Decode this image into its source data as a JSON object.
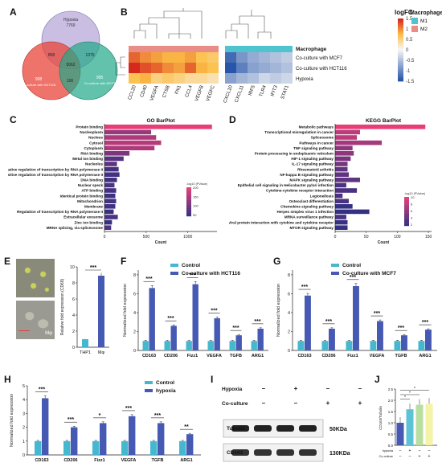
{
  "panel_labels": {
    "A": "A",
    "B": "B",
    "C": "C",
    "D": "D",
    "E": "E",
    "F": "F",
    "G": "G",
    "H": "H",
    "I": "I",
    "J": "J"
  },
  "venn": {
    "sets": [
      {
        "name": "Hypoxia",
        "count": "7769",
        "color": "#b8a8d8"
      },
      {
        "name": "Co-culture with HCT116",
        "count": "908",
        "color": "#e8463a"
      },
      {
        "name": "Co-culture with MCF7",
        "count": "995",
        "color": "#1fa888"
      }
    ],
    "intersections": {
      "hyp_hct": "858",
      "hyp_mcf": "1375",
      "hct_mcf": "100",
      "all": "5062"
    }
  },
  "heatmap": {
    "legend_title": "logFC",
    "legend_ticks": [
      "1.5",
      "1",
      "0.5",
      "0",
      "-0.5",
      "-1",
      "-1.5"
    ],
    "macrophage_label": "Macrophage",
    "macrophage_legend": [
      {
        "name": "M1",
        "color": "#4fc4cf"
      },
      {
        "name": "M2",
        "color": "#e88e86"
      }
    ],
    "rows": [
      "Macrophage",
      "Co-culture with MCF7",
      "Co-culture with HCT116",
      "Hypoxia"
    ],
    "columns": [
      "CCL20",
      "CD40",
      "VEGFA",
      "CTSB",
      "FN1",
      "CCL4",
      "VEGFB",
      "VEGFC",
      "CXCL10",
      "CXCL11",
      "IRF5",
      "TLR4",
      "IFIT3",
      "STAT1"
    ],
    "group": [
      "M2",
      "M2",
      "M2",
      "M2",
      "M2",
      "M2",
      "M2",
      "M2",
      "M1",
      "M1",
      "M1",
      "M1",
      "M1",
      "M1"
    ],
    "values": [
      [
        1.2,
        1.0,
        0.9,
        0.8,
        0.8,
        0.9,
        0.7,
        0.6,
        -1.3,
        -0.9,
        -0.7,
        -0.6,
        -0.5,
        -0.4
      ],
      [
        1.5,
        1.3,
        1.2,
        1.0,
        0.9,
        1.2,
        0.8,
        0.7,
        -1.5,
        -1.1,
        -0.8,
        -0.7,
        -0.6,
        -0.5
      ],
      [
        0.7,
        0.8,
        0.5,
        0.6,
        0.5,
        0.4,
        0.4,
        0.3,
        -0.8,
        -0.6,
        -0.5,
        -0.3,
        -0.4,
        -0.3
      ]
    ]
  },
  "go": {
    "title": "GO BarPlot",
    "xlabel": "Count",
    "xticks": [
      "0",
      "500",
      "1000"
    ],
    "xmax": 1350,
    "legend_title": "-log10 (PValue)",
    "legend_ticks": [
      "200",
      "150",
      "100",
      "50"
    ],
    "terms": [
      {
        "label": "Protein binding",
        "count": 1290,
        "p": 200
      },
      {
        "label": "Nucleoplasm",
        "count": 560,
        "p": 120
      },
      {
        "label": "Nucleus",
        "count": 620,
        "p": 140
      },
      {
        "label": "Cytosol",
        "count": 680,
        "p": 150
      },
      {
        "label": "Cytoplasm",
        "count": 600,
        "p": 140
      },
      {
        "label": "RNA binding",
        "count": 300,
        "p": 90
      },
      {
        "label": "Metal ion binding",
        "count": 230,
        "p": 50
      },
      {
        "label": "Nucleolus",
        "count": 150,
        "p": 60
      },
      {
        "label": "Negative regulation of transcription by RNA polymerase II",
        "count": 170,
        "p": 30
      },
      {
        "label": "Positive regulation of transcription by RNA polymerase II",
        "count": 180,
        "p": 30
      },
      {
        "label": "DNA binding",
        "count": 150,
        "p": 25
      },
      {
        "label": "Nuclear speck",
        "count": 120,
        "p": 40
      },
      {
        "label": "ATP binding",
        "count": 140,
        "p": 30
      },
      {
        "label": "Identical protein binding",
        "count": 130,
        "p": 25
      },
      {
        "label": "Mitochondrion",
        "count": 140,
        "p": 35
      },
      {
        "label": "Membrane",
        "count": 130,
        "p": 30
      },
      {
        "label": "Regulation of transcription by RNA polymerase II",
        "count": 110,
        "p": 20
      },
      {
        "label": "Extracellular exosome",
        "count": 160,
        "p": 40
      },
      {
        "label": "Zinc ion binding",
        "count": 90,
        "p": 15
      },
      {
        "label": "MRNA splicing, via spliceosome",
        "count": 80,
        "p": 45
      }
    ]
  },
  "kegg": {
    "title": "KEGG BarPlot",
    "xlabel": "Count",
    "xticks": [
      "0",
      "50",
      "100",
      "150"
    ],
    "xmax": 155,
    "legend_title": "-log10 (PValue)",
    "legend_ticks": [
      "10",
      "8",
      "6",
      "4",
      "2"
    ],
    "terms": [
      {
        "label": "Metabolic pathways",
        "count": 145,
        "p": 10
      },
      {
        "label": "Transcriptional misregulation in cancer",
        "count": 40,
        "p": 8
      },
      {
        "label": "Spliceosome",
        "count": 35,
        "p": 8
      },
      {
        "label": "Pathways in cancer",
        "count": 75,
        "p": 7
      },
      {
        "label": "TNF signaling pathway",
        "count": 28,
        "p": 6
      },
      {
        "label": "Protein processing in endoplasmic reticulum",
        "count": 30,
        "p": 6
      },
      {
        "label": "HIF-1 signaling pathway",
        "count": 25,
        "p": 5
      },
      {
        "label": "IL-17 signaling pathway",
        "count": 20,
        "p": 5
      },
      {
        "label": "Rheumatoid arthritis",
        "count": 20,
        "p": 4
      },
      {
        "label": "NF-kappa B signaling pathway",
        "count": 22,
        "p": 4
      },
      {
        "label": "MAPK signaling pathway",
        "count": 40,
        "p": 4
      },
      {
        "label": "Epithelial cell signaling in Helicobacter pylori infection",
        "count": 18,
        "p": 3
      },
      {
        "label": "Cytokine-cytokine receptor interaction",
        "count": 35,
        "p": 3
      },
      {
        "label": "Legionellosis",
        "count": 12,
        "p": 3
      },
      {
        "label": "Osteoclast differentiation",
        "count": 22,
        "p": 3
      },
      {
        "label": "Chemokine signaling pathway",
        "count": 28,
        "p": 2
      },
      {
        "label": "Herpes simplex virus 1 infection",
        "count": 55,
        "p": 2
      },
      {
        "label": "MRNA surveillance pathway",
        "count": 18,
        "p": 3
      },
      {
        "label": "Viral protein interaction with cytokine and cytokine receptor",
        "count": 20,
        "p": 2
      },
      {
        "label": "MTOR signaling pathway",
        "count": 20,
        "p": 2
      }
    ]
  },
  "panel_e": {
    "scale_label": "Mφ",
    "ylabel": "Relative fold expression (CD68)",
    "yticks": [
      "0",
      "2",
      "4",
      "6",
      "8",
      "10"
    ],
    "ymax": 10,
    "categories": [
      "THP1",
      "Mφ"
    ],
    "values": [
      1.0,
      8.9
    ],
    "sig": "***"
  },
  "panel_f": {
    "ylabel": "Normalized fold expression",
    "yticks": [
      "0",
      "2",
      "4",
      "6",
      "8"
    ],
    "ymax": 8.5,
    "categories": [
      "CD163",
      "CD206",
      "Fizz1",
      "VEGFA",
      "TGFB",
      "ARG1"
    ],
    "series": [
      {
        "name": "Control",
        "color": "#45b8cf",
        "values": [
          1.0,
          1.0,
          1.0,
          1.0,
          1.0,
          1.0
        ]
      },
      {
        "name": "Co-culture with HCT116",
        "color": "#4659b3",
        "values": [
          6.6,
          2.6,
          7.0,
          3.4,
          1.6,
          2.3
        ]
      }
    ],
    "sig": [
      "***",
      "***",
      "***",
      "***",
      "***",
      "***"
    ]
  },
  "panel_g": {
    "ylabel": "Normalized fold expression",
    "yticks": [
      "0",
      "2",
      "4",
      "6",
      "8"
    ],
    "ymax": 8.5,
    "categories": [
      "CD163",
      "CD206",
      "Fizz1",
      "VEGFA",
      "TGFB",
      "ARG1"
    ],
    "series": [
      {
        "name": "Control",
        "color": "#45b8cf",
        "values": [
          1.0,
          1.0,
          1.0,
          1.0,
          1.0,
          1.0
        ]
      },
      {
        "name": "Co-culture with MCF7",
        "color": "#4659b3",
        "values": [
          5.8,
          2.3,
          6.8,
          3.1,
          1.6,
          2.2
        ]
      }
    ],
    "sig": [
      "***",
      "***",
      "***",
      "***",
      "***",
      "***"
    ]
  },
  "panel_h": {
    "ylabel": "Normalized fold expression",
    "yticks": [
      "0",
      "1",
      "2",
      "3",
      "4",
      "5"
    ],
    "ymax": 5,
    "categories": [
      "CD163",
      "CD206",
      "Fizz1",
      "VEGFA",
      "TGFB",
      "ARG1"
    ],
    "series": [
      {
        "name": "Control",
        "color": "#45b8cf",
        "values": [
          1.0,
          1.0,
          1.0,
          1.0,
          1.0,
          1.0
        ]
      },
      {
        "name": "hypoxia",
        "color": "#4659b3",
        "values": [
          4.1,
          2.0,
          2.3,
          2.8,
          2.3,
          1.5
        ]
      }
    ],
    "sig": [
      "***",
      "***",
      "*",
      "***",
      "***",
      "**"
    ]
  },
  "panel_i": {
    "rows": [
      {
        "label": "Hypoxia",
        "marks": [
          "–",
          "+",
          "–",
          "–"
        ]
      },
      {
        "label": "Co-culture",
        "marks": [
          "–",
          "–",
          "+",
          "+"
        ]
      }
    ],
    "bands": [
      {
        "name": "Tubulin",
        "size": "50KDa"
      },
      {
        "name": "CD163",
        "size": "130KDa"
      }
    ]
  },
  "panel_j": {
    "ylabel": "CD163/Tubulin",
    "yticks": [
      "0.0",
      "0.5",
      "1.0",
      "1.5",
      "2.0",
      "2.5"
    ],
    "ymax": 2.5,
    "values": [
      1.0,
      1.6,
      1.8,
      1.85
    ],
    "colors": [
      "#4659b3",
      "#5cc3d6",
      "#b9dfa0",
      "#f5f3a5"
    ],
    "row_labels": [
      "hypoxia",
      "Co-culture"
    ],
    "rows": [
      [
        "–",
        "+",
        "–",
        "–"
      ],
      [
        "–",
        "–",
        "+",
        "+"
      ]
    ],
    "sig": [
      "*",
      "*",
      "*"
    ]
  }
}
